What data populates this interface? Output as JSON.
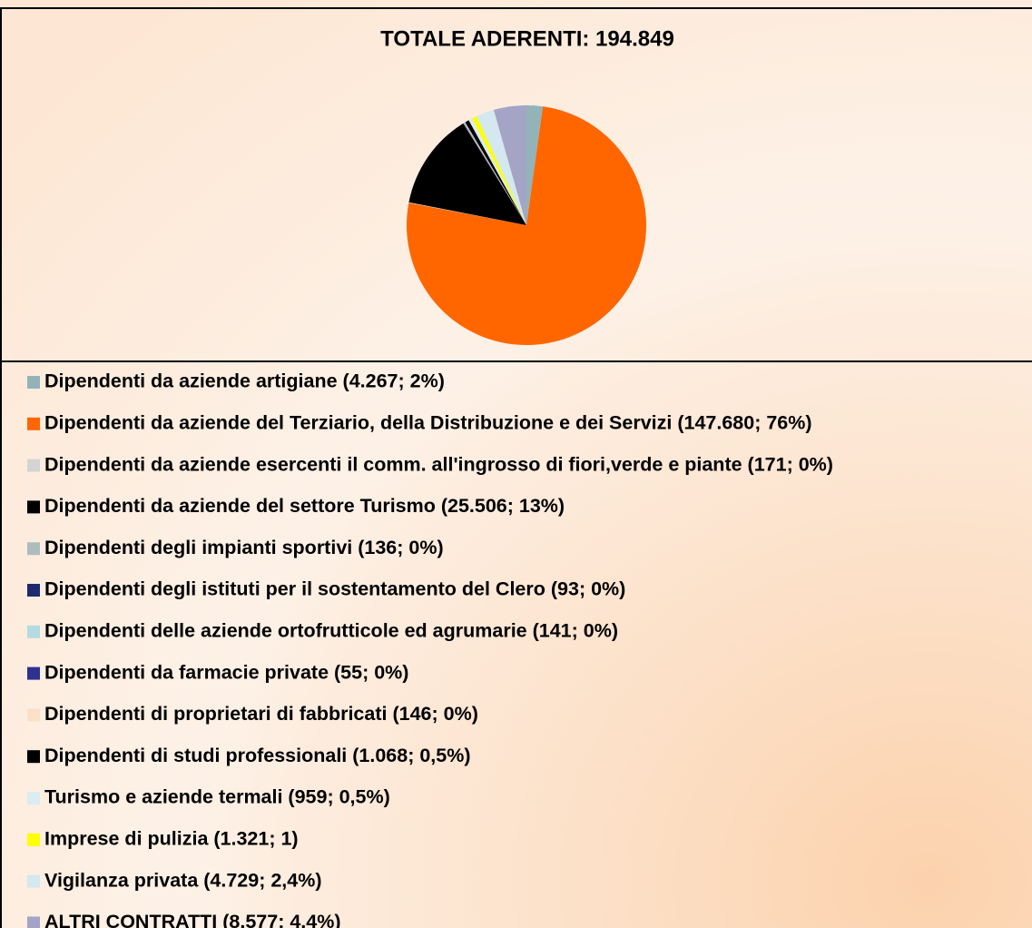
{
  "chart_data": {
    "type": "pie",
    "title": "TOTALE ADERENTI: 194.849",
    "categories": [
      "Dipendenti da aziende artigiane (4.267; 2%)",
      "Dipendenti da aziende del Terziario, della Distribuzione e dei Servizi (147.680; 76%)",
      "Dipendenti da aziende esercenti il comm. all'ingrosso di fiori,verde e piante (171; 0%)",
      "Dipendenti da aziende del settore Turismo (25.506; 13%)",
      "Dipendenti degli impianti sportivi (136; 0%)",
      "Dipendenti degli istituti per il sostentamento del Clero (93; 0%)",
      "Dipendenti delle aziende ortofrutticole ed agrumarie (141; 0%)",
      "Dipendenti da farmacie private (55; 0%)",
      "Dipendenti di proprietari di fabbricati (146; 0%)",
      "Dipendenti di studi professionali (1.068; 0,5%)",
      "Turismo e aziende termali (959; 0,5%)",
      "Imprese di pulizia (1.321; 1)",
      "Vigilanza privata (4.729; 2,4%)",
      "ALTRI CONTRATTI (8.577; 4,4%)"
    ],
    "values": [
      4267,
      147680,
      171,
      25506,
      136,
      93,
      141,
      55,
      146,
      1068,
      959,
      1321,
      4729,
      8577
    ],
    "colors": [
      "#93b3b9",
      "#ff6600",
      "#d4d4d4",
      "#000000",
      "#aebcbe",
      "#1f2a6e",
      "#b5dbe2",
      "#2e3192",
      "#fbe0c8",
      "#000000",
      "#d9edf2",
      "#ffff00",
      "#d3e8ef",
      "#a4a4c6"
    ]
  }
}
